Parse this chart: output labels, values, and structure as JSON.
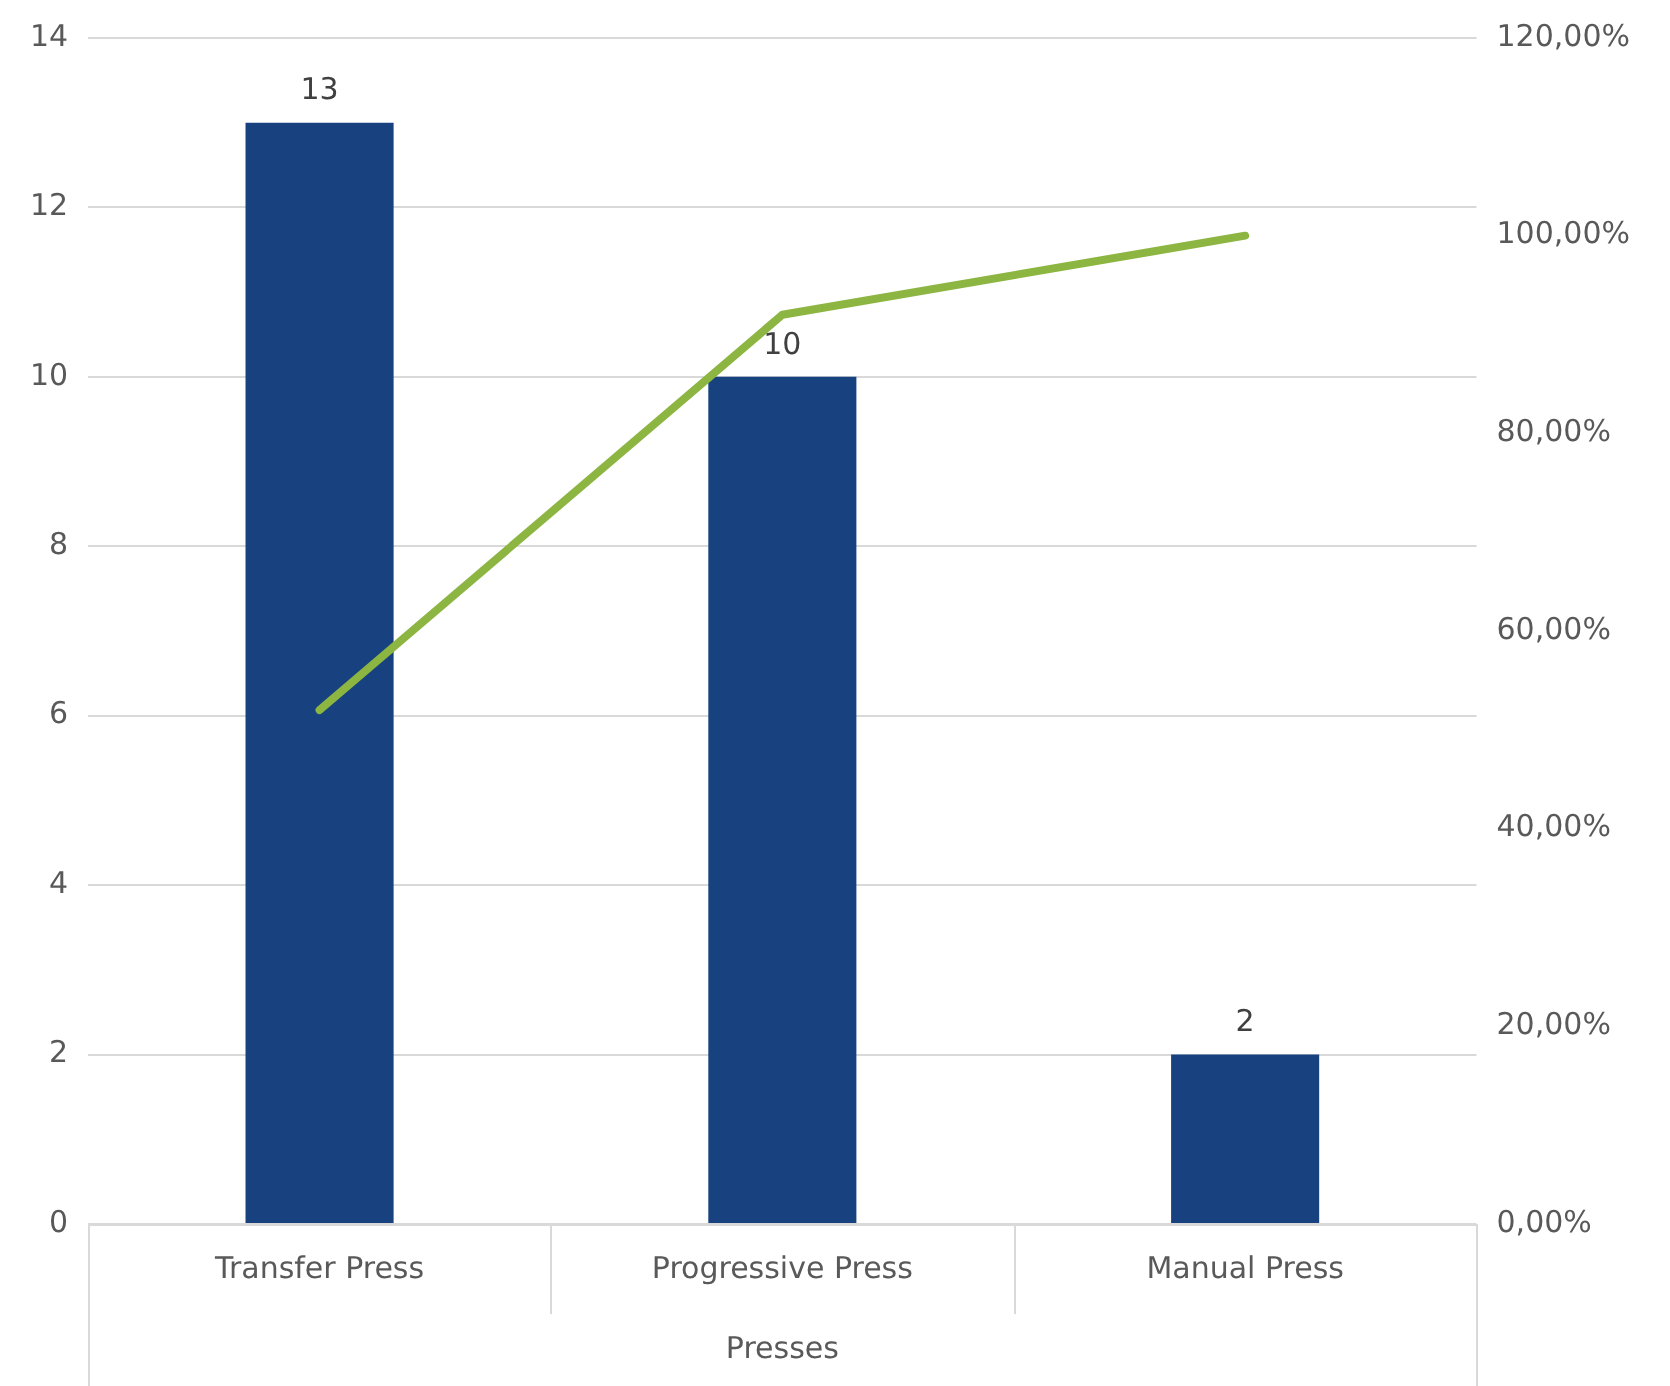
{
  "chart_data": {
    "type": "bar",
    "xlabel": "Presses",
    "categories": [
      "Transfer Press",
      "Progressive Press",
      "Manual Press"
    ],
    "series": [
      {
        "color": "#17427f",
        "values": [
          13,
          10,
          2
        ],
        "value_labels": [
          "13",
          "10",
          "2"
        ]
      },
      {
        "type": "line",
        "axis": "y2",
        "color": "#8cb542",
        "values": [
          52,
          92,
          100
        ]
      }
    ],
    "ylim": [
      0,
      14
    ],
    "yticks": [
      0,
      2,
      4,
      6,
      8,
      10,
      12,
      14
    ],
    "y2lim": [
      0,
      120
    ],
    "y2ticks": [
      {
        "value": 0,
        "label": "0,00%"
      },
      {
        "value": 20,
        "label": "20,00%"
      },
      {
        "value": 40,
        "label": "40,00%"
      },
      {
        "value": 60,
        "label": "60,00%"
      },
      {
        "value": 80,
        "label": "80,00%"
      },
      {
        "value": 100,
        "label": "100,00%"
      },
      {
        "value": 120,
        "label": "120,00%"
      }
    ],
    "grid": "y",
    "legend": false
  }
}
